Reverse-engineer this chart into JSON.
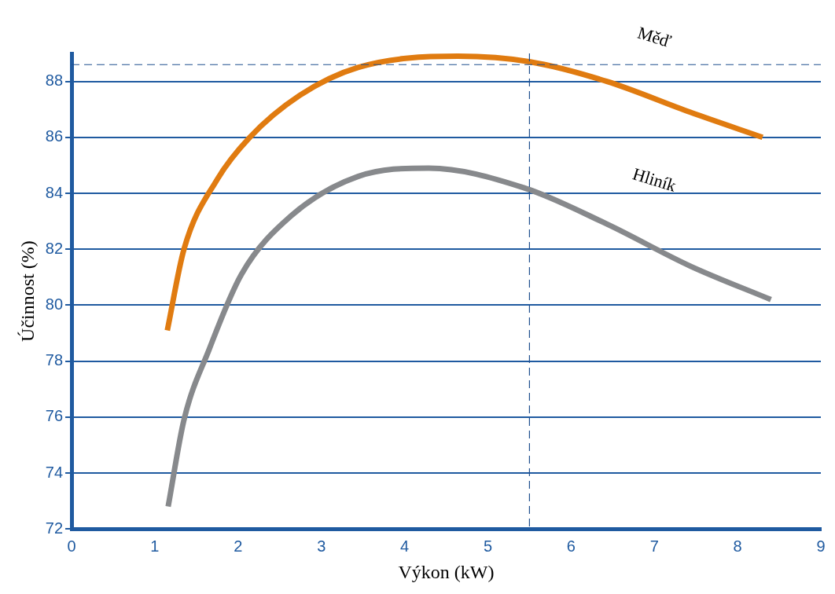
{
  "chart_data": {
    "type": "line",
    "xlabel": "Výkon (kW)",
    "ylabel": "Účinnost (%)",
    "xlim": [
      0,
      9
    ],
    "xticks": [
      0,
      1,
      2,
      3,
      4,
      5,
      6,
      7,
      8,
      9
    ],
    "ylim": [
      72,
      89
    ],
    "yticks": [
      72,
      74,
      76,
      78,
      80,
      82,
      84,
      86,
      88
    ],
    "grid": "y",
    "legend": false,
    "marker": "none",
    "line_style": "solid",
    "series": [
      {
        "name": "Měď",
        "color": "#e07b10",
        "x": [
          1.15,
          1.35,
          1.75,
          2.14,
          2.74,
          3.44,
          4.64,
          5.51,
          6.43,
          7.43,
          8.3
        ],
        "values": [
          79.1,
          82.0,
          84.5,
          86.0,
          87.5,
          88.5,
          88.9,
          88.7,
          88.0,
          86.9,
          86.0
        ]
      },
      {
        "name": "Hliník",
        "color": "#87898c",
        "x": [
          1.16,
          1.35,
          1.65,
          2.04,
          2.64,
          3.44,
          4.29,
          5.43,
          6.43,
          7.43,
          8.4
        ],
        "values": [
          72.8,
          75.9,
          78.4,
          81.1,
          83.2,
          84.6,
          84.9,
          84.2,
          82.9,
          81.4,
          80.2
        ]
      }
    ],
    "ref_lines": [
      {
        "axis": "x",
        "value": 5.5,
        "color": "#1f4f8f",
        "line_style": "dashed"
      },
      {
        "axis": "y",
        "value": 88.6,
        "color": "#1f4f8f",
        "line_style": "dashed"
      }
    ]
  }
}
